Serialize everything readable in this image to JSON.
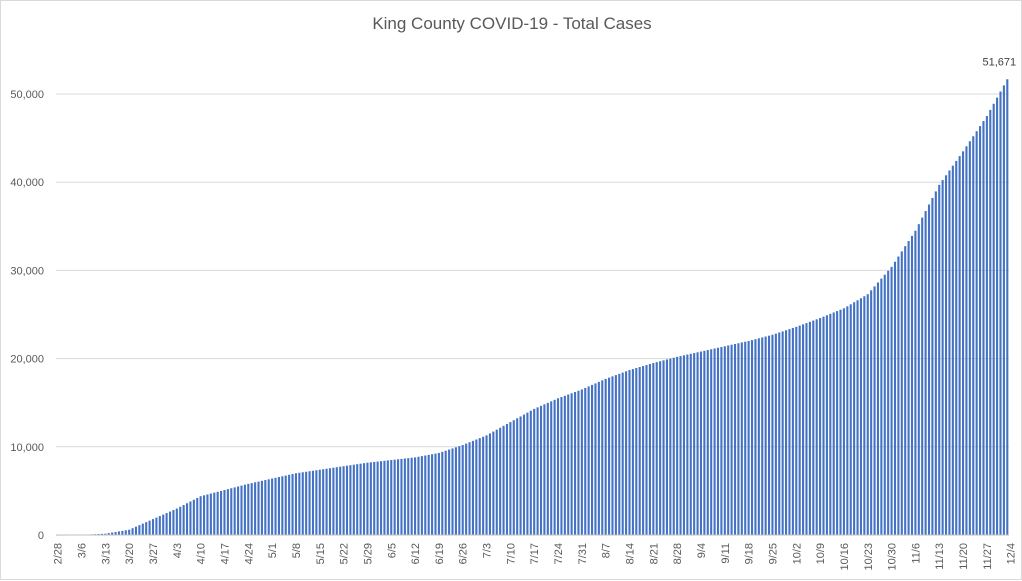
{
  "chart_data": {
    "type": "bar",
    "title": "King County COVID-19 - Total Cases",
    "xlabel": "",
    "ylabel": "",
    "ylim": [
      0,
      50000
    ],
    "y_tick_values": [
      0,
      10000,
      20000,
      30000,
      40000,
      50000
    ],
    "y_tick_labels": [
      "0",
      "10,000",
      "20,000",
      "30,000",
      "40,000",
      "50,000"
    ],
    "x_tick_labels": [
      "2/28",
      "3/6",
      "3/13",
      "3/20",
      "3/27",
      "4/3",
      "4/10",
      "4/17",
      "4/24",
      "5/1",
      "5/8",
      "5/15",
      "5/22",
      "5/29",
      "6/5",
      "6/12",
      "6/19",
      "6/26",
      "7/3",
      "7/10",
      "7/17",
      "7/24",
      "7/31",
      "8/7",
      "8/14",
      "8/21",
      "8/28",
      "9/4",
      "9/11",
      "9/18",
      "9/25",
      "10/2",
      "10/9",
      "10/16",
      "10/23",
      "10/30",
      "11/6",
      "11/13",
      "11/20",
      "11/27",
      "12/4"
    ],
    "first_date": "2/28",
    "days_between_labels": 7,
    "bar_color": "#4472c4",
    "series": [
      {
        "name": "Total Cases",
        "weekly_anchor_values": [
          0,
          20,
          150,
          600,
          1800,
          3000,
          4400,
          5100,
          5800,
          6400,
          7000,
          7400,
          7800,
          8200,
          8500,
          8800,
          9300,
          10200,
          11300,
          12800,
          14300,
          15500,
          16500,
          17700,
          18700,
          19500,
          20200,
          20800,
          21400,
          22000,
          22700,
          23600,
          24600,
          25700,
          27300,
          30400,
          34500,
          39700,
          43500,
          47500
        ],
        "final_value": 51671,
        "final_label": "51,671"
      }
    ]
  }
}
